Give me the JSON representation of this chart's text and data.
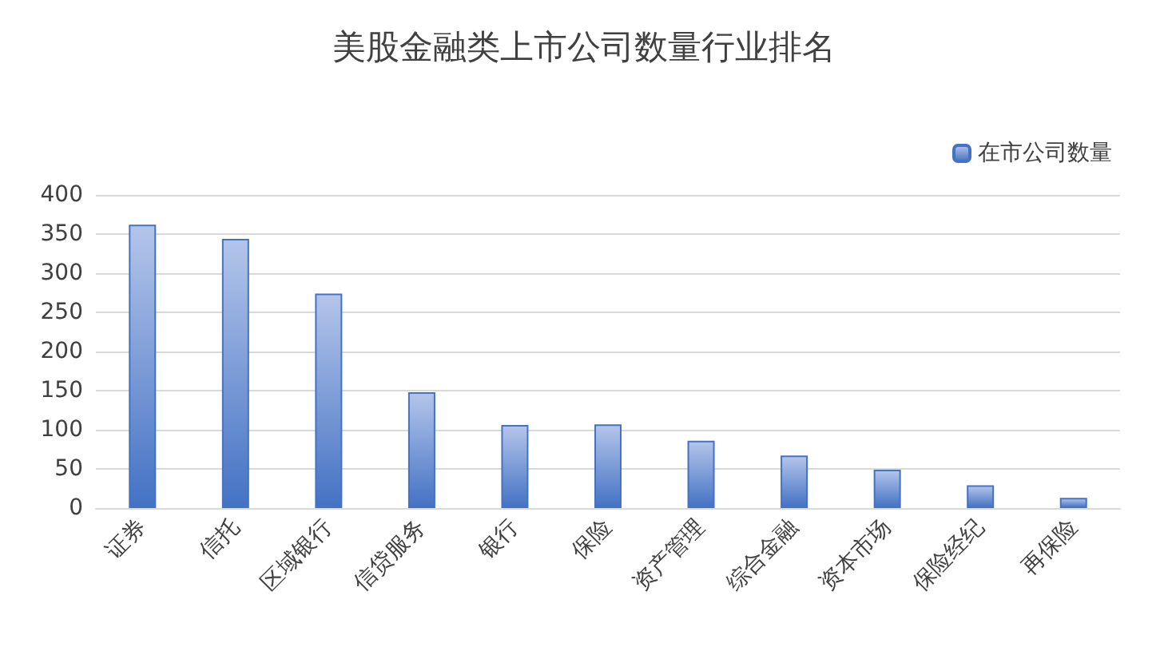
{
  "chart_data": {
    "type": "bar",
    "title": "美股金融类上市公司数量行业排名",
    "categories": [
      "证券",
      "信托",
      "区域银行",
      "信贷服务",
      "银行",
      "保险",
      "资产管理",
      "综合金融",
      "资本市场",
      "保险经纪",
      "再保险"
    ],
    "series": [
      {
        "name": "在市公司数量",
        "color": "#4472c4",
        "values": [
          362,
          344,
          274,
          148,
          106,
          107,
          86,
          67,
          49,
          29,
          13
        ]
      }
    ],
    "ylim": [
      0,
      400
    ],
    "yticks": [
      0,
      50,
      100,
      150,
      200,
      250,
      300,
      350,
      400
    ],
    "grid": "y",
    "legend": "top right"
  }
}
